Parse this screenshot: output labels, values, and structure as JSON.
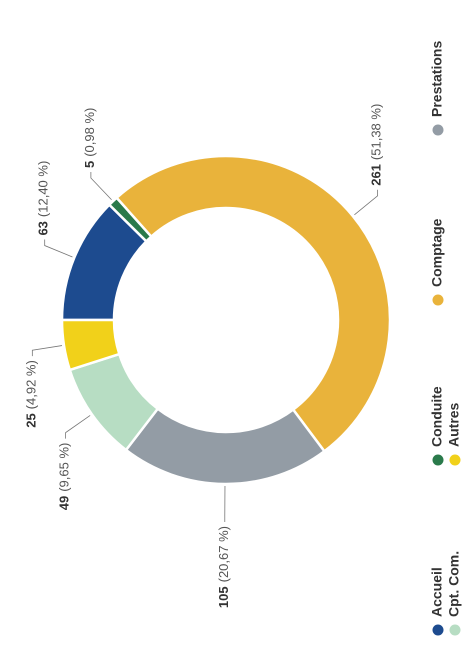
{
  "chart_data": {
    "type": "donut",
    "categories": [
      "Accueil",
      "Conduite",
      "Comptage",
      "Prestations",
      "Cpt. Com.",
      "Autres"
    ],
    "values": [
      63,
      5,
      261,
      105,
      49,
      25
    ],
    "percent_labels": [
      "(12,40 %)",
      "(0,98 %)",
      "(51,38 %)",
      "(20,67 %)",
      "(9,65 %)",
      "(4,92 %)"
    ],
    "colors": [
      "#1d4b8f",
      "#2a7a4b",
      "#e9b33b",
      "#939ca5",
      "#b7ddc3",
      "#f1d11a"
    ],
    "legend": "bottom"
  }
}
